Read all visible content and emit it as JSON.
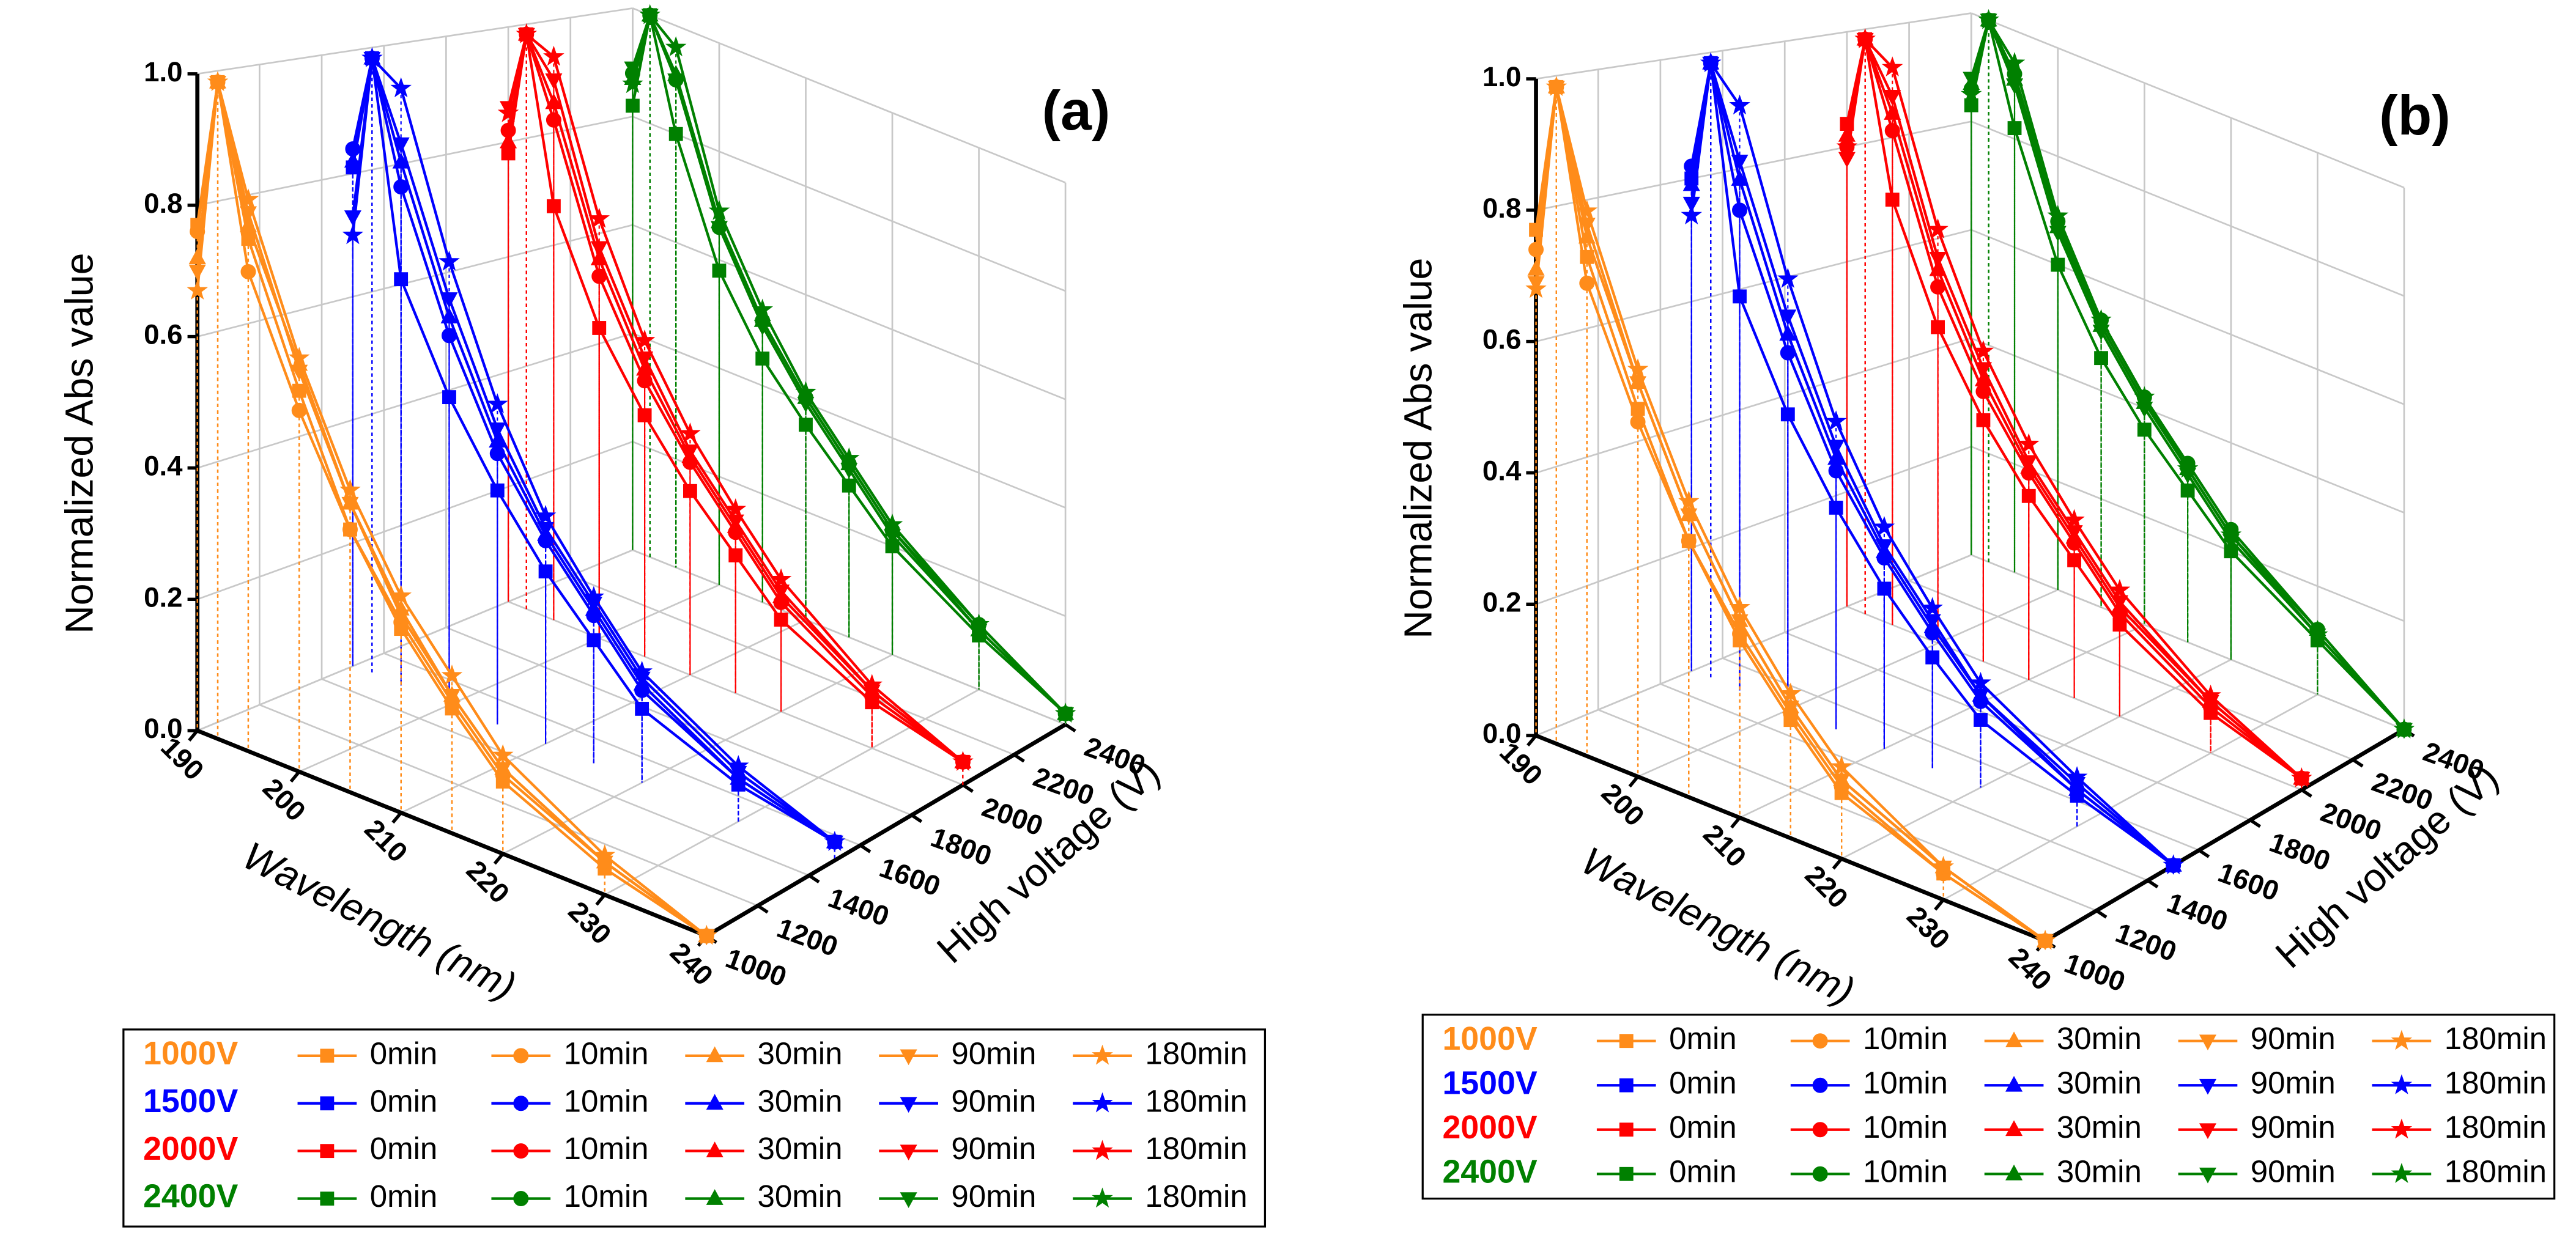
{
  "chart_data": [
    {
      "type": "line3d",
      "title": "(a)",
      "x_label": "Wavelength (nm)",
      "z_label": "High voltage (V)",
      "y_label": "Normalized Abs value",
      "x": [
        190,
        192,
        195,
        200,
        205,
        210,
        215,
        220,
        230,
        240
      ],
      "xlim": [
        190,
        240
      ],
      "xticks": [
        190,
        200,
        210,
        220,
        230,
        240
      ],
      "zlim": [
        1000,
        2400
      ],
      "zticks": [
        1000,
        1200,
        1400,
        1600,
        1800,
        2000,
        2200,
        2400
      ],
      "ylim": [
        0,
        1
      ],
      "yticks": [
        {
          "value": 0,
          "label": "0.0"
        },
        0.2,
        0.4,
        0.6,
        0.8,
        {
          "value": 1,
          "label": "1.0"
        }
      ],
      "grid": true,
      "groups": [
        {
          "name": "1000V",
          "color": "#ff8c1a",
          "z": 1000,
          "series": [
            {
              "name": "0min",
              "marker": "square",
              "values": [
                0.77,
                1.0,
                0.78,
                0.58,
                0.4,
                0.28,
                0.19,
                0.11,
                0.04,
                0.0
              ]
            },
            {
              "name": "10min",
              "marker": "circle",
              "values": [
                0.76,
                1.0,
                0.73,
                0.55,
                0.4,
                0.29,
                0.2,
                0.12,
                0.05,
                0.0
              ]
            },
            {
              "name": "30min",
              "marker": "triangle-up",
              "values": [
                0.72,
                1.0,
                0.8,
                0.62,
                0.44,
                0.31,
                0.21,
                0.13,
                0.05,
                0.0
              ]
            },
            {
              "name": "90min",
              "marker": "triangle-down",
              "values": [
                0.7,
                1.0,
                0.82,
                0.61,
                0.44,
                0.3,
                0.21,
                0.13,
                0.05,
                0.0
              ]
            },
            {
              "name": "180min",
              "marker": "star",
              "values": [
                0.67,
                1.0,
                0.84,
                0.63,
                0.46,
                0.33,
                0.24,
                0.15,
                0.06,
                0.0
              ]
            }
          ]
        },
        {
          "name": "1500V",
          "color": "#0000ff",
          "z": 1500,
          "series": [
            {
              "name": "0min",
              "marker": "square",
              "values": [
                0.81,
                1.0,
                0.66,
                0.5,
                0.38,
                0.28,
                0.2,
                0.12,
                0.06,
                0.03
              ]
            },
            {
              "name": "10min",
              "marker": "circle",
              "values": [
                0.84,
                1.0,
                0.81,
                0.6,
                0.44,
                0.33,
                0.24,
                0.15,
                0.07,
                0.03
              ]
            },
            {
              "name": "30min",
              "marker": "triangle-up",
              "values": [
                0.82,
                1.0,
                0.85,
                0.63,
                0.46,
                0.34,
                0.25,
                0.16,
                0.07,
                0.03
              ]
            },
            {
              "name": "90min",
              "marker": "triangle-down",
              "values": [
                0.73,
                1.0,
                0.88,
                0.66,
                0.48,
                0.35,
                0.26,
                0.17,
                0.08,
                0.03
              ]
            },
            {
              "name": "180min",
              "marker": "star",
              "values": [
                0.7,
                1.0,
                0.97,
                0.72,
                0.52,
                0.37,
                0.27,
                0.18,
                0.09,
                0.03
              ]
            }
          ]
        },
        {
          "name": "2000V",
          "color": "#ff0000",
          "z": 2000,
          "series": [
            {
              "name": "0min",
              "marker": "square",
              "values": [
                0.78,
                1.0,
                0.72,
                0.54,
                0.42,
                0.32,
                0.24,
                0.16,
                0.08,
                0.04
              ]
            },
            {
              "name": "10min",
              "marker": "circle",
              "values": [
                0.82,
                1.0,
                0.87,
                0.63,
                0.48,
                0.37,
                0.28,
                0.19,
                0.09,
                0.04
              ]
            },
            {
              "name": "30min",
              "marker": "triangle-up",
              "values": [
                0.8,
                1.0,
                0.9,
                0.66,
                0.5,
                0.38,
                0.29,
                0.2,
                0.1,
                0.04
              ]
            },
            {
              "name": "90min",
              "marker": "triangle-down",
              "values": [
                0.86,
                1.0,
                0.94,
                0.68,
                0.52,
                0.39,
                0.3,
                0.21,
                0.1,
                0.04
              ]
            },
            {
              "name": "180min",
              "marker": "star",
              "values": [
                0.85,
                1.0,
                0.98,
                0.73,
                0.55,
                0.42,
                0.32,
                0.23,
                0.11,
                0.04
              ]
            }
          ]
        },
        {
          "name": "2400V",
          "color": "#008000",
          "z": 2400,
          "series": [
            {
              "name": "0min",
              "marker": "square",
              "values": [
                0.82,
                1.0,
                0.8,
                0.58,
                0.45,
                0.36,
                0.28,
                0.2,
                0.1,
                0.02
              ]
            },
            {
              "name": "10min",
              "marker": "circle",
              "values": [
                0.88,
                1.0,
                0.9,
                0.66,
                0.52,
                0.41,
                0.32,
                0.23,
                0.12,
                0.02
              ]
            },
            {
              "name": "30min",
              "marker": "triangle-up",
              "values": [
                0.87,
                1.0,
                0.91,
                0.67,
                0.52,
                0.41,
                0.32,
                0.23,
                0.11,
                0.02
              ]
            },
            {
              "name": "90min",
              "marker": "triangle-down",
              "values": [
                0.89,
                1.0,
                0.9,
                0.66,
                0.51,
                0.4,
                0.31,
                0.22,
                0.11,
                0.02
              ]
            },
            {
              "name": "180min",
              "marker": "star",
              "values": [
                0.86,
                1.0,
                0.96,
                0.69,
                0.54,
                0.42,
                0.33,
                0.24,
                0.12,
                0.02
              ]
            }
          ]
        }
      ]
    },
    {
      "type": "line3d",
      "title": "(b)",
      "x_label": "Wavelength (nm)",
      "z_label": "High voltage (V)",
      "y_label": "Normalized Abs value",
      "x": [
        190,
        192,
        195,
        200,
        205,
        210,
        215,
        220,
        230,
        240
      ],
      "xlim": [
        190,
        240
      ],
      "xticks": [
        190,
        200,
        210,
        220,
        230,
        240
      ],
      "zlim": [
        1000,
        2400
      ],
      "zticks": [
        1000,
        1200,
        1400,
        1600,
        1800,
        2000,
        2200,
        2400
      ],
      "ylim": [
        0,
        1
      ],
      "yticks": [
        {
          "value": 0,
          "label": "0.0"
        },
        0.2,
        0.4,
        0.6,
        0.8,
        {
          "value": 1,
          "label": "1.0"
        }
      ],
      "grid": true,
      "groups": [
        {
          "name": "1000V",
          "color": "#ff8c1a",
          "z": 1000,
          "series": [
            {
              "name": "0min",
              "marker": "square",
              "values": [
                0.77,
                1.0,
                0.76,
                0.56,
                0.39,
                0.27,
                0.18,
                0.1,
                0.04,
                0.0
              ]
            },
            {
              "name": "10min",
              "marker": "circle",
              "values": [
                0.74,
                1.0,
                0.72,
                0.54,
                0.39,
                0.28,
                0.19,
                0.11,
                0.04,
                0.0
              ]
            },
            {
              "name": "30min",
              "marker": "triangle-up",
              "values": [
                0.71,
                1.0,
                0.79,
                0.6,
                0.43,
                0.3,
                0.2,
                0.12,
                0.05,
                0.0
              ]
            },
            {
              "name": "90min",
              "marker": "triangle-down",
              "values": [
                0.69,
                1.0,
                0.81,
                0.6,
                0.43,
                0.3,
                0.2,
                0.12,
                0.05,
                0.0
              ]
            },
            {
              "name": "180min",
              "marker": "star",
              "values": [
                0.68,
                1.0,
                0.83,
                0.62,
                0.45,
                0.32,
                0.22,
                0.14,
                0.05,
                0.0
              ]
            }
          ]
        },
        {
          "name": "1500V",
          "color": "#0000ff",
          "z": 1500,
          "series": [
            {
              "name": "0min",
              "marker": "square",
              "values": [
                0.8,
                1.0,
                0.64,
                0.48,
                0.36,
                0.26,
                0.18,
                0.11,
                0.05,
                0.0
              ]
            },
            {
              "name": "10min",
              "marker": "circle",
              "values": [
                0.82,
                1.0,
                0.78,
                0.58,
                0.42,
                0.31,
                0.22,
                0.14,
                0.06,
                0.0
              ]
            },
            {
              "name": "30min",
              "marker": "triangle-up",
              "values": [
                0.79,
                1.0,
                0.83,
                0.61,
                0.44,
                0.32,
                0.23,
                0.15,
                0.06,
                0.0
              ]
            },
            {
              "name": "90min",
              "marker": "triangle-down",
              "values": [
                0.76,
                1.0,
                0.86,
                0.64,
                0.46,
                0.33,
                0.24,
                0.15,
                0.07,
                0.0
              ]
            },
            {
              "name": "180min",
              "marker": "star",
              "values": [
                0.74,
                1.0,
                0.95,
                0.7,
                0.5,
                0.36,
                0.26,
                0.17,
                0.08,
                0.0
              ]
            }
          ]
        },
        {
          "name": "2000V",
          "color": "#ff0000",
          "z": 2000,
          "series": [
            {
              "name": "0min",
              "marker": "square",
              "values": [
                0.84,
                1.0,
                0.74,
                0.55,
                0.42,
                0.32,
                0.24,
                0.16,
                0.07,
                0.02
              ]
            },
            {
              "name": "10min",
              "marker": "circle",
              "values": [
                0.8,
                1.0,
                0.86,
                0.62,
                0.47,
                0.36,
                0.27,
                0.18,
                0.08,
                0.02
              ]
            },
            {
              "name": "30min",
              "marker": "triangle-up",
              "values": [
                0.82,
                1.0,
                0.89,
                0.65,
                0.49,
                0.37,
                0.28,
                0.19,
                0.09,
                0.02
              ]
            },
            {
              "name": "90min",
              "marker": "triangle-down",
              "values": [
                0.78,
                1.0,
                0.92,
                0.67,
                0.51,
                0.38,
                0.29,
                0.2,
                0.09,
                0.02
              ]
            },
            {
              "name": "180min",
              "marker": "star",
              "values": [
                0.8,
                1.0,
                0.97,
                0.72,
                0.54,
                0.41,
                0.31,
                0.22,
                0.1,
                0.02
              ]
            }
          ]
        },
        {
          "name": "2400V",
          "color": "#008000",
          "z": 2400,
          "series": [
            {
              "name": "0min",
              "marker": "square",
              "values": [
                0.83,
                1.0,
                0.82,
                0.6,
                0.46,
                0.36,
                0.28,
                0.2,
                0.1,
                0.0
              ]
            },
            {
              "name": "10min",
              "marker": "circle",
              "values": [
                0.86,
                1.0,
                0.92,
                0.68,
                0.53,
                0.42,
                0.33,
                0.24,
                0.12,
                0.0
              ]
            },
            {
              "name": "30min",
              "marker": "triangle-up",
              "values": [
                0.87,
                1.0,
                0.91,
                0.67,
                0.52,
                0.41,
                0.32,
                0.23,
                0.12,
                0.0
              ]
            },
            {
              "name": "90min",
              "marker": "triangle-down",
              "values": [
                0.88,
                1.0,
                0.9,
                0.66,
                0.51,
                0.4,
                0.31,
                0.22,
                0.11,
                0.0
              ]
            },
            {
              "name": "180min",
              "marker": "star",
              "values": [
                0.85,
                1.0,
                0.94,
                0.69,
                0.53,
                0.42,
                0.32,
                0.23,
                0.11,
                0.0
              ]
            }
          ]
        }
      ]
    }
  ]
}
